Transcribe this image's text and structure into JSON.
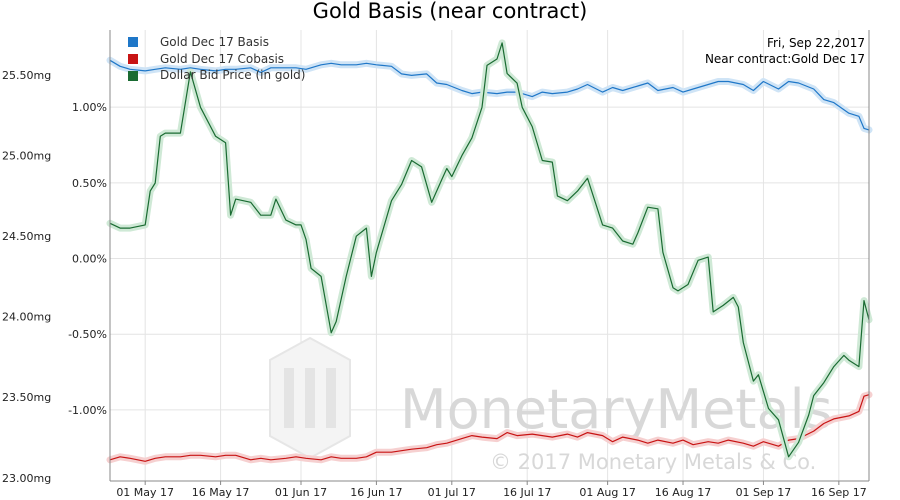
{
  "chart_data": {
    "type": "line",
    "title": "Gold Basis (near contract)",
    "info": {
      "date": "Fri, Sep 22,2017",
      "contract": "Near contract:Gold Dec 17"
    },
    "legend_position": "top-left",
    "grid": true,
    "xlim": [
      "2017-04-24",
      "2017-09-22"
    ],
    "x_ticks": [
      "2017-05-01",
      "2017-05-16",
      "2017-06-01",
      "2017-06-16",
      "2017-07-01",
      "2017-07-16",
      "2017-08-01",
      "2017-08-16",
      "2017-09-01",
      "2017-09-16"
    ],
    "x_tick_labels": [
      "01 May 17",
      "16 May 17",
      "01 Jun 17",
      "16 Jun 17",
      "01 Jul 17",
      "16 Jul 17",
      "01 Aug 17",
      "16 Aug 17",
      "01 Sep 17",
      "16 Sep 17"
    ],
    "left_axis": {
      "unit": "mg",
      "ylim": [
        22.98,
        25.78
      ],
      "ticks": [
        23.0,
        23.5,
        24.0,
        24.5,
        25.0,
        25.5
      ],
      "tick_labels": [
        "23.00mg",
        "23.50mg",
        "24.00mg",
        "24.50mg",
        "25.00mg",
        "25.50mg"
      ]
    },
    "right_axis": {
      "unit": "%",
      "ylim": [
        -1.47,
        1.51
      ],
      "ticks": [
        -1.0,
        -0.5,
        0.0,
        0.5,
        1.0
      ],
      "tick_labels": [
        "-1.00%",
        "-0.50%",
        "0.00%",
        "0.50%",
        "1.00%"
      ]
    },
    "series": [
      {
        "name": "Gold Dec 17 Basis",
        "color": "#1f77c8",
        "axis": "right",
        "points": [
          [
            "2017-04-24",
            1.31
          ],
          [
            "2017-04-26",
            1.27
          ],
          [
            "2017-04-28",
            1.25
          ],
          [
            "2017-05-01",
            1.24
          ],
          [
            "2017-05-03",
            1.25
          ],
          [
            "2017-05-05",
            1.26
          ],
          [
            "2017-05-08",
            1.25
          ],
          [
            "2017-05-10",
            1.26
          ],
          [
            "2017-05-12",
            1.25
          ],
          [
            "2017-05-15",
            1.24
          ],
          [
            "2017-05-17",
            1.25
          ],
          [
            "2017-05-19",
            1.25
          ],
          [
            "2017-05-22",
            1.26
          ],
          [
            "2017-05-24",
            1.23
          ],
          [
            "2017-05-26",
            1.26
          ],
          [
            "2017-05-29",
            1.26
          ],
          [
            "2017-05-31",
            1.26
          ],
          [
            "2017-06-02",
            1.25
          ],
          [
            "2017-06-05",
            1.28
          ],
          [
            "2017-06-07",
            1.29
          ],
          [
            "2017-06-09",
            1.28
          ],
          [
            "2017-06-12",
            1.28
          ],
          [
            "2017-06-14",
            1.29
          ],
          [
            "2017-06-16",
            1.28
          ],
          [
            "2017-06-19",
            1.27
          ],
          [
            "2017-06-21",
            1.22
          ],
          [
            "2017-06-23",
            1.21
          ],
          [
            "2017-06-26",
            1.22
          ],
          [
            "2017-06-28",
            1.16
          ],
          [
            "2017-06-30",
            1.15
          ],
          [
            "2017-07-03",
            1.11
          ],
          [
            "2017-07-05",
            1.09
          ],
          [
            "2017-07-07",
            1.1
          ],
          [
            "2017-07-10",
            1.09
          ],
          [
            "2017-07-12",
            1.1
          ],
          [
            "2017-07-14",
            1.1
          ],
          [
            "2017-07-17",
            1.07
          ],
          [
            "2017-07-19",
            1.1
          ],
          [
            "2017-07-21",
            1.09
          ],
          [
            "2017-07-24",
            1.1
          ],
          [
            "2017-07-26",
            1.12
          ],
          [
            "2017-07-28",
            1.15
          ],
          [
            "2017-07-31",
            1.1
          ],
          [
            "2017-08-02",
            1.13
          ],
          [
            "2017-08-04",
            1.11
          ],
          [
            "2017-08-07",
            1.14
          ],
          [
            "2017-08-09",
            1.16
          ],
          [
            "2017-08-11",
            1.11
          ],
          [
            "2017-08-14",
            1.13
          ],
          [
            "2017-08-16",
            1.1
          ],
          [
            "2017-08-18",
            1.12
          ],
          [
            "2017-08-21",
            1.15
          ],
          [
            "2017-08-23",
            1.17
          ],
          [
            "2017-08-25",
            1.17
          ],
          [
            "2017-08-28",
            1.15
          ],
          [
            "2017-08-30",
            1.11
          ],
          [
            "2017-09-01",
            1.17
          ],
          [
            "2017-09-04",
            1.12
          ],
          [
            "2017-09-06",
            1.17
          ],
          [
            "2017-09-08",
            1.16
          ],
          [
            "2017-09-11",
            1.12
          ],
          [
            "2017-09-13",
            1.05
          ],
          [
            "2017-09-15",
            1.03
          ],
          [
            "2017-09-18",
            0.96
          ],
          [
            "2017-09-20",
            0.94
          ],
          [
            "2017-09-21",
            0.86
          ],
          [
            "2017-09-22",
            0.85
          ]
        ]
      },
      {
        "name": "Gold Dec 17 Cobasis",
        "color": "#c81414",
        "axis": "right",
        "points": [
          [
            "2017-04-24",
            -1.33
          ],
          [
            "2017-04-26",
            -1.31
          ],
          [
            "2017-04-28",
            -1.32
          ],
          [
            "2017-05-01",
            -1.34
          ],
          [
            "2017-05-03",
            -1.32
          ],
          [
            "2017-05-05",
            -1.31
          ],
          [
            "2017-05-08",
            -1.31
          ],
          [
            "2017-05-10",
            -1.3
          ],
          [
            "2017-05-12",
            -1.3
          ],
          [
            "2017-05-15",
            -1.31
          ],
          [
            "2017-05-17",
            -1.3
          ],
          [
            "2017-05-19",
            -1.3
          ],
          [
            "2017-05-22",
            -1.33
          ],
          [
            "2017-05-24",
            -1.32
          ],
          [
            "2017-05-26",
            -1.33
          ],
          [
            "2017-05-29",
            -1.32
          ],
          [
            "2017-05-31",
            -1.31
          ],
          [
            "2017-06-02",
            -1.32
          ],
          [
            "2017-06-05",
            -1.33
          ],
          [
            "2017-06-07",
            -1.31
          ],
          [
            "2017-06-09",
            -1.32
          ],
          [
            "2017-06-12",
            -1.32
          ],
          [
            "2017-06-14",
            -1.31
          ],
          [
            "2017-06-16",
            -1.28
          ],
          [
            "2017-06-19",
            -1.28
          ],
          [
            "2017-06-21",
            -1.27
          ],
          [
            "2017-06-23",
            -1.26
          ],
          [
            "2017-06-26",
            -1.25
          ],
          [
            "2017-06-28",
            -1.23
          ],
          [
            "2017-06-30",
            -1.22
          ],
          [
            "2017-07-03",
            -1.19
          ],
          [
            "2017-07-05",
            -1.17
          ],
          [
            "2017-07-07",
            -1.18
          ],
          [
            "2017-07-10",
            -1.19
          ],
          [
            "2017-07-12",
            -1.15
          ],
          [
            "2017-07-14",
            -1.17
          ],
          [
            "2017-07-17",
            -1.16
          ],
          [
            "2017-07-19",
            -1.17
          ],
          [
            "2017-07-21",
            -1.18
          ],
          [
            "2017-07-24",
            -1.16
          ],
          [
            "2017-07-26",
            -1.18
          ],
          [
            "2017-07-28",
            -1.15
          ],
          [
            "2017-07-31",
            -1.17
          ],
          [
            "2017-08-02",
            -1.21
          ],
          [
            "2017-08-04",
            -1.18
          ],
          [
            "2017-08-07",
            -1.2
          ],
          [
            "2017-08-09",
            -1.22
          ],
          [
            "2017-08-11",
            -1.2
          ],
          [
            "2017-08-14",
            -1.22
          ],
          [
            "2017-08-16",
            -1.2
          ],
          [
            "2017-08-18",
            -1.23
          ],
          [
            "2017-08-21",
            -1.21
          ],
          [
            "2017-08-23",
            -1.22
          ],
          [
            "2017-08-25",
            -1.2
          ],
          [
            "2017-08-28",
            -1.22
          ],
          [
            "2017-08-30",
            -1.24
          ],
          [
            "2017-09-01",
            -1.21
          ],
          [
            "2017-09-04",
            -1.24
          ],
          [
            "2017-09-06",
            -1.2
          ],
          [
            "2017-09-08",
            -1.19
          ],
          [
            "2017-09-11",
            -1.14
          ],
          [
            "2017-09-13",
            -1.09
          ],
          [
            "2017-09-15",
            -1.06
          ],
          [
            "2017-09-18",
            -1.04
          ],
          [
            "2017-09-20",
            -1.01
          ],
          [
            "2017-09-21",
            -0.91
          ],
          [
            "2017-09-22",
            -0.9
          ]
        ]
      },
      {
        "name": "Dollar Bid Price (in gold)",
        "color": "#1a6b32",
        "axis": "left",
        "points": [
          [
            "2017-04-24",
            24.58
          ],
          [
            "2017-04-26",
            24.55
          ],
          [
            "2017-04-28",
            24.55
          ],
          [
            "2017-05-01",
            24.57
          ],
          [
            "2017-05-02",
            24.78
          ],
          [
            "2017-05-03",
            24.83
          ],
          [
            "2017-05-04",
            25.12
          ],
          [
            "2017-05-05",
            25.14
          ],
          [
            "2017-05-08",
            25.14
          ],
          [
            "2017-05-10",
            25.52
          ],
          [
            "2017-05-12",
            25.3
          ],
          [
            "2017-05-15",
            25.12
          ],
          [
            "2017-05-17",
            25.08
          ],
          [
            "2017-05-18",
            24.63
          ],
          [
            "2017-05-19",
            24.73
          ],
          [
            "2017-05-22",
            24.71
          ],
          [
            "2017-05-24",
            24.63
          ],
          [
            "2017-05-26",
            24.63
          ],
          [
            "2017-05-27",
            24.73
          ],
          [
            "2017-05-29",
            24.6
          ],
          [
            "2017-05-31",
            24.57
          ],
          [
            "2017-06-01",
            24.57
          ],
          [
            "2017-06-02",
            24.48
          ],
          [
            "2017-06-03",
            24.3
          ],
          [
            "2017-06-05",
            24.25
          ],
          [
            "2017-06-07",
            23.9
          ],
          [
            "2017-06-08",
            23.97
          ],
          [
            "2017-06-10",
            24.25
          ],
          [
            "2017-06-12",
            24.5
          ],
          [
            "2017-06-14",
            24.55
          ],
          [
            "2017-06-15",
            24.25
          ],
          [
            "2017-06-16",
            24.4
          ],
          [
            "2017-06-19",
            24.72
          ],
          [
            "2017-06-21",
            24.82
          ],
          [
            "2017-06-23",
            24.97
          ],
          [
            "2017-06-25",
            24.93
          ],
          [
            "2017-06-27",
            24.71
          ],
          [
            "2017-06-29",
            24.85
          ],
          [
            "2017-06-30",
            24.92
          ],
          [
            "2017-07-01",
            24.87
          ],
          [
            "2017-07-03",
            25.0
          ],
          [
            "2017-07-05",
            25.11
          ],
          [
            "2017-07-07",
            25.3
          ],
          [
            "2017-07-08",
            25.56
          ],
          [
            "2017-07-10",
            25.6
          ],
          [
            "2017-07-11",
            25.7
          ],
          [
            "2017-07-12",
            25.51
          ],
          [
            "2017-07-14",
            25.45
          ],
          [
            "2017-07-15",
            25.3
          ],
          [
            "2017-07-17",
            25.18
          ],
          [
            "2017-07-19",
            24.97
          ],
          [
            "2017-07-21",
            24.96
          ],
          [
            "2017-07-22",
            24.75
          ],
          [
            "2017-07-24",
            24.72
          ],
          [
            "2017-07-26",
            24.78
          ],
          [
            "2017-07-28",
            24.86
          ],
          [
            "2017-07-31",
            24.57
          ],
          [
            "2017-08-02",
            24.55
          ],
          [
            "2017-08-04",
            24.47
          ],
          [
            "2017-08-06",
            24.45
          ],
          [
            "2017-08-07",
            24.52
          ],
          [
            "2017-08-09",
            24.68
          ],
          [
            "2017-08-11",
            24.67
          ],
          [
            "2017-08-12",
            24.4
          ],
          [
            "2017-08-14",
            24.18
          ],
          [
            "2017-08-15",
            24.16
          ],
          [
            "2017-08-17",
            24.2
          ],
          [
            "2017-08-19",
            24.35
          ],
          [
            "2017-08-21",
            24.37
          ],
          [
            "2017-08-22",
            24.03
          ],
          [
            "2017-08-24",
            24.07
          ],
          [
            "2017-08-26",
            24.12
          ],
          [
            "2017-08-27",
            24.06
          ],
          [
            "2017-08-28",
            23.84
          ],
          [
            "2017-08-30",
            23.6
          ],
          [
            "2017-08-31",
            23.64
          ],
          [
            "2017-09-02",
            23.43
          ],
          [
            "2017-09-04",
            23.36
          ],
          [
            "2017-09-06",
            23.13
          ],
          [
            "2017-09-08",
            23.22
          ],
          [
            "2017-09-10",
            23.39
          ],
          [
            "2017-09-11",
            23.51
          ],
          [
            "2017-09-13",
            23.59
          ],
          [
            "2017-09-15",
            23.69
          ],
          [
            "2017-09-17",
            23.76
          ],
          [
            "2017-09-18",
            23.73
          ],
          [
            "2017-09-20",
            23.69
          ],
          [
            "2017-09-21",
            24.1
          ],
          [
            "2017-09-22",
            23.98
          ]
        ]
      }
    ]
  },
  "watermark": {
    "brand": "MonetaryMetals",
    "copyright": "© 2017 Monetary Metals & Co."
  }
}
